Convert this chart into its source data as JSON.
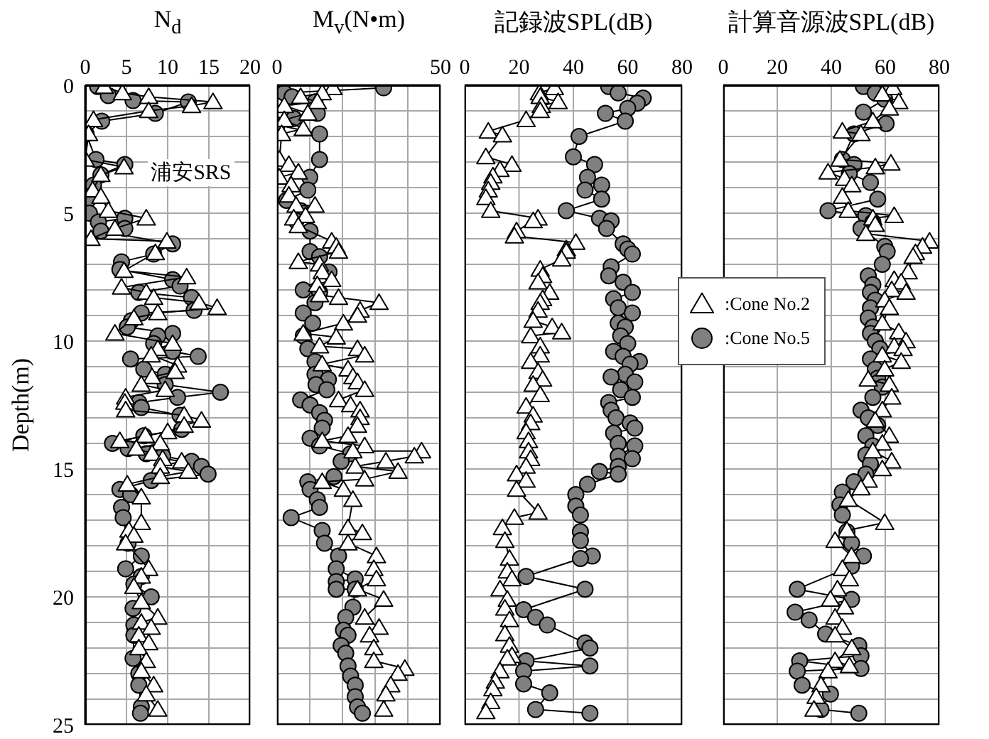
{
  "chart_data": [
    {
      "type": "line",
      "title": "N$_{d}$",
      "ylabel": "Depth(m)",
      "annotations": [
        "浦安SRS"
      ],
      "xlim": [
        0,
        20
      ],
      "xticks": [
        0,
        5,
        10,
        15,
        20
      ],
      "ylim": [
        25,
        0
      ],
      "yticks": [
        0,
        {
          "value": 1,
          "label": null
        },
        {
          "value": 2,
          "label": null
        },
        {
          "value": 3,
          "label": null
        },
        {
          "value": 4,
          "label": null
        },
        5,
        {
          "value": 6,
          "label": null
        },
        {
          "value": 7,
          "label": null
        },
        {
          "value": 8,
          "label": null
        },
        {
          "value": 9,
          "label": null
        },
        10,
        {
          "value": 11,
          "label": null
        },
        {
          "value": 12,
          "label": null
        },
        {
          "value": 13,
          "label": null
        },
        {
          "value": 14,
          "label": null
        },
        15,
        {
          "value": 16,
          "label": null
        },
        {
          "value": 17,
          "label": null
        },
        {
          "value": 18,
          "label": null
        },
        {
          "value": 19,
          "label": null
        },
        20,
        {
          "value": 21,
          "label": null
        },
        {
          "value": 22,
          "label": null
        },
        {
          "value": 23,
          "label": null
        },
        {
          "value": 24,
          "label": null
        },
        25
      ],
      "grid": true,
      "legend": false,
      "series": [
        {
          "color": "#ffffff",
          "marker": "triangle",
          "x": [
            2.3,
            4.5,
            7.7,
            15.5,
            12.9,
            7.7,
            1.0,
            0.4,
            0.0,
            4.7,
            1.9,
            0.9,
            1.9,
            2.8,
            7.4,
            3.6,
            0.7,
            9.9,
            8.5,
            4.7,
            12.3,
            4.4,
            7.4,
            8.3,
            13.8,
            16.0,
            8.8,
            5.9,
            3.6,
            10.6,
            8.8,
            8.0,
            11.2,
            10.9,
            8.1,
            6.8,
            9.7,
            4.9,
            4.8,
            4.9,
            12.0,
            14.1,
            12.0,
            10.0,
            7.3,
            4.2,
            9.1,
            6.2,
            8.1,
            9.4,
            11.7,
            9.1,
            12.5,
            9.1,
            5.1,
            6.8,
            6.8,
            5.3,
            5.9,
            4.9,
            7.7,
            6.8,
            5.9,
            6.8,
            8.8,
            6.8,
            8.0,
            6.5,
            7.7,
            6.5,
            7.4,
            6.8,
            8.3,
            7.4,
            8.8
          ],
          "values": [
            0.05,
            0.3,
            0.45,
            0.65,
            0.8,
            1.0,
            1.35,
            1.9,
            2.9,
            3.2,
            3.5,
            4.1,
            4.35,
            4.9,
            5.2,
            5.6,
            6.0,
            6.1,
            6.55,
            7.25,
            7.5,
            7.9,
            8.1,
            8.3,
            8.5,
            8.7,
            8.9,
            9.1,
            9.7,
            10.1,
            10.3,
            10.55,
            10.95,
            11.2,
            11.4,
            11.7,
            11.9,
            12.2,
            12.4,
            12.7,
            12.9,
            13.1,
            13.3,
            13.55,
            13.7,
            13.9,
            14.0,
            14.2,
            14.4,
            14.6,
            14.7,
            14.9,
            15.1,
            15.3,
            15.6,
            16.1,
            17.1,
            17.4,
            17.6,
            17.9,
            18.9,
            19.2,
            19.6,
            20.2,
            20.8,
            21.0,
            21.2,
            21.5,
            21.8,
            22.0,
            22.5,
            22.9,
            23.45,
            23.8,
            24.4
          ]
        },
        {
          "color": "#808080",
          "marker": "circle",
          "x": [
            1.5,
            2.8,
            5.8,
            12.5,
            8.5,
            2.0,
            0.1,
            1.3,
            4.8,
            1.9,
            1.0,
            0.4,
            0.5,
            1.6,
            4.8,
            4.8,
            1.9,
            10.6,
            8.3,
            4.4,
            4.2,
            10.6,
            11.5,
            6.5,
            12.9,
            13.2,
            6.8,
            5.6,
            5.1,
            10.6,
            8.8,
            8.3,
            10.6,
            13.7,
            5.5,
            7.1,
            9.7,
            9.7,
            16.4,
            11.2,
            6.5,
            6.8,
            11.5,
            11.7,
            7.1,
            3.3,
            5.2,
            7.4,
            9.4,
            12.9,
            14.1,
            14.9,
            8.0,
            4.2,
            5.5,
            4.4,
            4.6,
            5.2,
            6.8,
            4.9,
            6.8,
            5.9,
            8.0,
            5.8,
            5.9,
            5.9,
            5.8,
            6.5,
            6.5,
            6.8,
            6.7
          ],
          "values": [
            0.05,
            0.4,
            0.6,
            0.65,
            1.1,
            1.4,
            1.9,
            2.9,
            3.1,
            3.5,
            3.9,
            4.45,
            5.0,
            5.35,
            5.2,
            5.6,
            5.7,
            6.2,
            6.6,
            6.9,
            7.2,
            7.6,
            7.85,
            8.1,
            8.3,
            8.8,
            8.9,
            9.2,
            9.45,
            9.7,
            9.8,
            10.1,
            10.4,
            10.6,
            10.7,
            11.1,
            11.3,
            11.7,
            12.0,
            12.2,
            12.4,
            12.6,
            12.9,
            13.45,
            13.7,
            14.0,
            14.2,
            14.4,
            14.5,
            14.7,
            14.9,
            15.2,
            15.45,
            15.8,
            16.0,
            16.5,
            16.9,
            17.9,
            18.4,
            18.9,
            19.2,
            19.5,
            20.0,
            20.45,
            21.1,
            21.5,
            22.4,
            23.0,
            23.45,
            24.3,
            24.55
          ]
        }
      ]
    },
    {
      "type": "line",
      "title": "M$_{v}$(N•m)",
      "xlim": [
        0,
        50
      ],
      "xticks": [
        0,
        {
          "value": 10,
          "label": null
        },
        {
          "value": 20,
          "label": null
        },
        {
          "value": 30,
          "label": null
        },
        {
          "value": 40,
          "label": null
        },
        50
      ],
      "ylim": [
        25,
        0
      ],
      "yticks": [
        0,
        1,
        2,
        3,
        4,
        5,
        6,
        7,
        8,
        9,
        10,
        11,
        12,
        13,
        14,
        15,
        16,
        17,
        18,
        19,
        20,
        21,
        22,
        23,
        24,
        25
      ],
      "tick_labels": "x",
      "grid": true,
      "legend": false,
      "series": [
        {
          "color": "#ffffff",
          "marker": "triangle",
          "x": [
            17.1,
            13.8,
            7.2,
            12.3,
            2.2,
            9.4,
            2.2,
            8,
            1.4,
            0.7,
            3.6,
            6.5,
            0.7,
            4.3,
            3.6,
            5.8,
            11.6,
            8.7,
            5.1,
            6.5,
            16.7,
            18.1,
            18.8,
            6.5,
            13,
            13.8,
            16.7,
            12.3,
            13,
            18.8,
            31.2,
            25.4,
            24.6,
            20.3,
            8,
            18.1,
            13,
            24.6,
            26.8,
            13.8,
            21.7,
            23.2,
            24.6,
            26.8,
            18.8,
            22.5,
            25.4,
            25.4,
            24.6,
            21.7,
            13.8,
            26.8,
            23.2,
            44.2,
            42,
            33.3,
            23.9,
            37,
            26.8,
            13.8,
            20.3,
            23.2,
            21.7,
            26.1,
            21.7,
            30.4,
            29.6,
            30.4,
            24.6,
            32.6,
            26.8,
            31.2,
            28.3,
            29.6,
            29.6,
            39.1,
            37,
            34.8,
            33.3,
            32.6
          ],
          "values": [
            0.1,
            0.3,
            0.45,
            0.65,
            0.8,
            1.1,
            1.35,
            1.7,
            1.9,
            2.9,
            3.1,
            3.4,
            3.6,
            3.9,
            4.3,
            4.7,
            4.7,
            5.1,
            5.2,
            5.5,
            6.1,
            6.3,
            6.5,
            6.9,
            7.0,
            7.3,
            7.6,
            7.8,
            8.2,
            8.3,
            8.5,
            8.8,
            9.0,
            9.3,
            9.7,
            9.85,
            10.2,
            10.3,
            10.55,
            10.9,
            11.1,
            11.4,
            11.6,
            11.9,
            12.3,
            12.5,
            12.7,
            13.0,
            13.3,
            13.7,
            13.9,
            14.1,
            14.3,
            14.3,
            14.5,
            14.7,
            14.9,
            15.1,
            15.4,
            15.5,
            15.8,
            16.2,
            17.3,
            17.5,
            17.9,
            18.4,
            18.9,
            19.3,
            19.7,
            20.1,
            20.8,
            21.2,
            21.5,
            22.0,
            22.5,
            22.8,
            23.0,
            23.45,
            23.8,
            24.4
          ]
        },
        {
          "color": "#808080",
          "marker": "circle",
          "x": [
            32.6,
            2.2,
            4.6,
            11.6,
            12.3,
            5.1,
            0,
            13,
            13,
            10,
            9.4,
            2.9,
            7.2,
            5.8,
            10.1,
            10.1,
            13,
            15.9,
            8,
            13,
            11.6,
            8,
            10.9,
            8,
            9.4,
            11.6,
            11.6,
            15.7,
            11.9,
            15.2,
            7.2,
            10.1,
            13,
            14.5,
            13.8,
            10.1,
            13,
            22.5,
            19.6,
            17.4,
            9.4,
            10.1,
            12.3,
            13,
            4.3,
            13.8,
            14.5,
            18.8,
            18.1,
            23.9,
            18.1,
            18.1,
            23.9,
            23.2,
            21,
            20.3,
            21.7,
            19.6,
            21,
            21.7,
            22.5,
            23.9,
            23.9,
            24.6,
            26.1
          ],
          "values": [
            0.1,
            0.3,
            0.45,
            0.65,
            1.1,
            1.3,
            1.55,
            1.9,
            2.9,
            3.6,
            4.1,
            4.5,
            4.9,
            5.3,
            5.7,
            6.5,
            6.7,
            7.3,
            8,
            8.1,
            8.5,
            8.9,
            9.3,
            9.8,
            10.3,
            10.8,
            11.3,
            11.5,
            11.7,
            11.9,
            12.3,
            12.5,
            12.8,
            13.1,
            13.4,
            13.8,
            14.1,
            14.4,
            14.7,
            15.3,
            15.5,
            15.8,
            16.2,
            16.5,
            16.9,
            17.4,
            17.9,
            18.4,
            18.9,
            19.3,
            19.4,
            19.7,
            19.7,
            20.4,
            20.8,
            21.3,
            21.5,
            21.9,
            22.2,
            22.7,
            23.1,
            23.45,
            23.9,
            24.3,
            24.55
          ]
        }
      ]
    },
    {
      "type": "line",
      "title": "記録波SPL(dB)",
      "xlim": [
        0,
        80
      ],
      "xticks": [
        0,
        20,
        40,
        60,
        80
      ],
      "ylim": [
        25,
        0
      ],
      "yticks": [
        0,
        1,
        2,
        3,
        4,
        5,
        6,
        7,
        8,
        9,
        10,
        11,
        12,
        13,
        14,
        15,
        16,
        17,
        18,
        19,
        20,
        21,
        22,
        23,
        24,
        25
      ],
      "tick_labels": "x",
      "grid": true,
      "legend": "right",
      "series": [
        {
          "name": ":Cone No.2",
          "color": "#ffffff",
          "marker": "triangle",
          "x": [
            33,
            27.5,
            27.8,
            34.4,
            28.2,
            27.8,
            22.6,
            8.7,
            13.9,
            7.8,
            17.4,
            13,
            10.4,
            9.6,
            8.7,
            7.8,
            9.6,
            27,
            25.2,
            19.1,
            18.3,
            40.9,
            37.4,
            37.4,
            35.7,
            27.8,
            28.7,
            27,
            31.3,
            28.7,
            27.8,
            27,
            25.2,
            32.2,
            35.7,
            24.3,
            27.8,
            27.8,
            24.3,
            27,
            28.7,
            25.2,
            27.8,
            22.6,
            25.2,
            24.3,
            22.6,
            23.5,
            23.5,
            24.3,
            22.6,
            19.1,
            22.6,
            19.1,
            27,
            18.3,
            13.9,
            14.8,
            16.5,
            15.7,
            17.4,
            13,
            15.7,
            14.8,
            16.5,
            14.8,
            16.5,
            17.4,
            15.7,
            13,
            11.3,
            10.4,
            9.6,
            7.8
          ],
          "values": [
            0.1,
            0.3,
            0.45,
            0.65,
            0.8,
            1.0,
            1.35,
            1.8,
            1.95,
            2.8,
            3.1,
            3.3,
            3.55,
            3.8,
            4.1,
            4.4,
            4.9,
            5.2,
            5.3,
            5.7,
            5.9,
            6.15,
            6.4,
            6.5,
            6.8,
            7.2,
            7.45,
            7.7,
            8.1,
            8.35,
            8.5,
            8.8,
            9.2,
            9.45,
            9.65,
            9.8,
            10.2,
            10.55,
            10.8,
            11.2,
            11.5,
            11.7,
            12.1,
            12.55,
            12.9,
            13.2,
            13.55,
            13.9,
            14.3,
            14.6,
            14.9,
            15.2,
            15.45,
            15.8,
            16.7,
            16.9,
            17.3,
            17.8,
            18.5,
            19.0,
            19.3,
            19.7,
            20.1,
            20.45,
            20.9,
            21.45,
            21.9,
            22.3,
            22.4,
            22.9,
            23.3,
            23.6,
            24.1,
            24.5
          ]
        },
        {
          "name": ":Cone No.5",
          "color": "#808080",
          "marker": "circle",
          "x": [
            53,
            56.5,
            65.7,
            63.5,
            60,
            51.8,
            59.1,
            42.1,
            40,
            47.8,
            45.2,
            50.4,
            44.3,
            50.4,
            37.4,
            49.6,
            53.9,
            52.2,
            58.3,
            60,
            61.7,
            53.9,
            53,
            58.3,
            61.7,
            54.8,
            56.5,
            61.7,
            56.5,
            59.1,
            57.4,
            60,
            54.8,
            58.3,
            64.3,
            60.9,
            59.1,
            53.9,
            62.6,
            57.4,
            61.7,
            53,
            53.9,
            55.7,
            60.9,
            62.6,
            54.8,
            56.5,
            62.6,
            56.5,
            61.7,
            56.5,
            49.6,
            56.5,
            45.2,
            40.9,
            40.9,
            42.6,
            42.6,
            42.6,
            47,
            42.6,
            22.6,
            44.3,
            21.7,
            26.1,
            30.4,
            44.3,
            46.1,
            22.6,
            46.1,
            21.7,
            21.7,
            31.3,
            26.1,
            46.1
          ],
          "values": [
            0.05,
            0.3,
            0.5,
            0.7,
            0.9,
            1.1,
            1.4,
            2.0,
            2.8,
            3.1,
            3.6,
            3.9,
            4.1,
            4.45,
            4.9,
            5.2,
            5.3,
            5.6,
            6.2,
            6.4,
            6.6,
            7.1,
            7.45,
            7.7,
            8.1,
            8.35,
            8.7,
            8.9,
            9.3,
            9.45,
            9.8,
            10.1,
            10.4,
            10.6,
            10.8,
            10.9,
            11.3,
            11.4,
            11.6,
            11.9,
            12.2,
            12.4,
            12.7,
            13.0,
            13.2,
            13.4,
            13.6,
            14.0,
            14.1,
            14.5,
            14.6,
            14.9,
            15.1,
            15.2,
            15.6,
            16.0,
            16.45,
            16.8,
            17.45,
            17.8,
            18.4,
            18.5,
            19.2,
            19.7,
            20.5,
            20.8,
            21.1,
            21.8,
            22.0,
            22.5,
            22.7,
            22.9,
            23.4,
            23.75,
            24.4,
            24.55
          ]
        }
      ]
    },
    {
      "type": "line",
      "title": "計算音源波SPL(dB)",
      "xlim": [
        0,
        80
      ],
      "xticks": [
        0,
        20,
        40,
        60,
        80
      ],
      "ylim": [
        25,
        0
      ],
      "yticks": [
        0,
        1,
        2,
        3,
        4,
        5,
        6,
        7,
        8,
        9,
        10,
        11,
        12,
        13,
        14,
        15,
        16,
        17,
        18,
        19,
        20,
        21,
        22,
        23,
        24,
        25
      ],
      "tick_labels": "x",
      "grid": true,
      "legend": false,
      "series": [
        {
          "color": "#ffffff",
          "marker": "triangle",
          "x": [
            62.8,
            58.9,
            65,
            61.5,
            55.4,
            44.1,
            51,
            43.2,
            62.1,
            56.3,
            38.8,
            44.9,
            47.6,
            44.1,
            46.3,
            63.3,
            55.4,
            56.3,
            52.8,
            76.4,
            73.8,
            71.2,
            70.3,
            68.5,
            63.3,
            65.9,
            62.4,
            67.7,
            59.8,
            61.5,
            58.9,
            65,
            67.7,
            63.3,
            66.6,
            58.9,
            65.9,
            59.8,
            53.7,
            61.5,
            62.4,
            58.9,
            56.3,
            61.5,
            58.9,
            55.4,
            62.4,
            58.9,
            53.7,
            51,
            46.3,
            59.8,
            45.8,
            41.4,
            47.5,
            44.1,
            46.7,
            42.3,
            39.7,
            44.9,
            41.4,
            44.1,
            41.4,
            47.6,
            41.4,
            46.7,
            38.8,
            36.2,
            34.4,
            33.6
          ],
          "values": [
            0.1,
            0.35,
            0.65,
            0.9,
            1.4,
            1.8,
            1.9,
            2.9,
            3.05,
            3.2,
            3.4,
            3.65,
            3.9,
            4.35,
            4.9,
            5.1,
            5.2,
            5.45,
            5.8,
            6.1,
            6.3,
            6.55,
            6.7,
            7.3,
            7.6,
            7.7,
            8.0,
            8.1,
            8.4,
            8.7,
            9.3,
            9.65,
            10.0,
            10.2,
            10.3,
            10.55,
            10.8,
            11.1,
            11.5,
            11.7,
            12.2,
            12.7,
            13.1,
            13.7,
            14.0,
            14.3,
            14.7,
            15.0,
            15.45,
            15.75,
            16.2,
            17.1,
            17.4,
            17.8,
            18.4,
            18.9,
            19.3,
            19.7,
            20.1,
            20.4,
            20.8,
            21.2,
            21.5,
            22.0,
            22.5,
            22.7,
            22.9,
            23.45,
            23.9,
            24.4
          ]
        },
        {
          "color": "#808080",
          "marker": "circle",
          "x": [
            51.9,
            56.3,
            59.8,
            51.9,
            60.3,
            48.4,
            44.1,
            48.4,
            46.7,
            54.5,
            57.2,
            38.8,
            52.8,
            55.4,
            51,
            59.8,
            60.7,
            58.9,
            53.7,
            55.4,
            54.5,
            56.3,
            54.5,
            53.7,
            55.4,
            54.5,
            56.3,
            58,
            54.5,
            56.3,
            57.2,
            58.9,
            55.4,
            51,
            53.7,
            57.2,
            52.8,
            55.4,
            52.8,
            54.5,
            52.8,
            48.4,
            44.1,
            43.2,
            44.1,
            45.8,
            47.5,
            51.9,
            47.5,
            27.4,
            47.5,
            26.6,
            31.8,
            37.9,
            50.2,
            51,
            28.3,
            51,
            27.4,
            29.2,
            39.7,
            36.2,
            50.2
          ],
          "values": [
            0.05,
            0.3,
            0.55,
            1.05,
            1.5,
            1.9,
            2.9,
            3.1,
            3.45,
            3.8,
            4.45,
            4.9,
            5.1,
            5.35,
            5.6,
            6.3,
            6.5,
            7.0,
            7.45,
            7.8,
            8.1,
            8.4,
            8.7,
            9.1,
            9.45,
            9.7,
            10.0,
            10.3,
            10.7,
            11.1,
            11.45,
            11.8,
            12.2,
            12.7,
            13.0,
            13.3,
            13.7,
            14.1,
            14.45,
            14.8,
            15.2,
            15.5,
            15.9,
            16.4,
            16.8,
            17.45,
            17.9,
            18.4,
            18.8,
            19.7,
            20.1,
            20.6,
            20.9,
            21.45,
            21.9,
            22.3,
            22.5,
            22.8,
            22.9,
            23.45,
            23.8,
            24.4,
            24.55
          ]
        }
      ]
    }
  ]
}
